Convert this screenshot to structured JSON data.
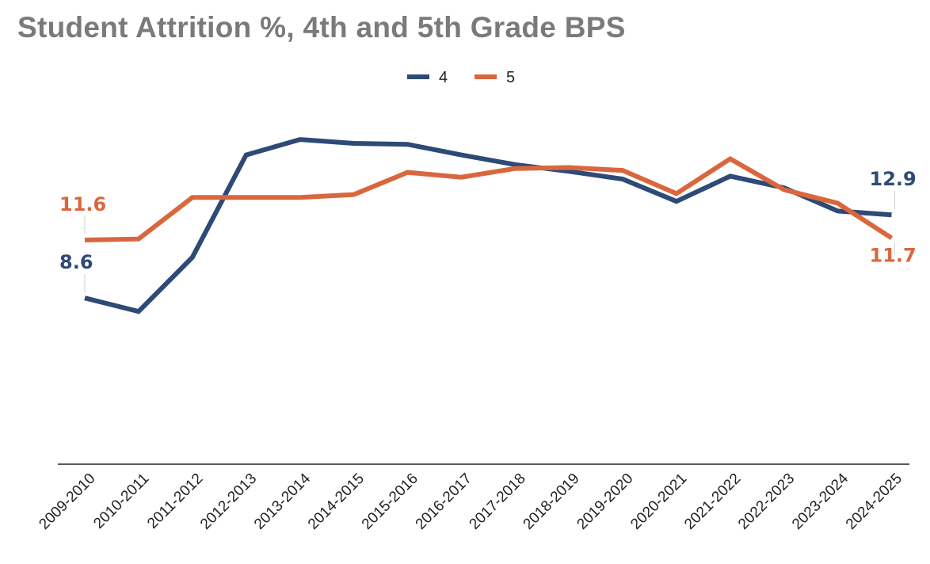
{
  "chart_data": {
    "type": "line",
    "title": "Student Attrition %, 4th and 5th Grade BPS",
    "xlabel": "",
    "ylabel": "",
    "ylim": [
      0,
      17
    ],
    "grid": false,
    "legend_position": "top-center",
    "categories": [
      "2009-2010",
      "2010-2011",
      "2011-2012",
      "2012-2013",
      "2013-2014",
      "2014-2015",
      "2015-2016",
      "2016-2017",
      "2017-2018",
      "2018-2019",
      "2019-2020",
      "2020-2021",
      "2021-2022",
      "2022-2023",
      "2023-2024",
      "2024-2025"
    ],
    "series": [
      {
        "name": "4",
        "color": "#2e4a76",
        "values": [
          8.6,
          7.9,
          10.7,
          16.0,
          16.8,
          16.6,
          16.55,
          16.0,
          15.5,
          15.15,
          14.75,
          13.6,
          14.9,
          14.3,
          13.1,
          12.9
        ],
        "labels": [
          {
            "index": 0,
            "text": "8.6"
          },
          {
            "index": 15,
            "text": "12.9"
          }
        ]
      },
      {
        "name": "5",
        "color": "#d9673d",
        "values": [
          11.6,
          11.65,
          13.8,
          13.8,
          13.8,
          13.95,
          15.1,
          14.85,
          15.3,
          15.35,
          15.2,
          14.0,
          15.8,
          14.2,
          13.5,
          11.7
        ],
        "labels": [
          {
            "index": 0,
            "text": "11.6"
          },
          {
            "index": 15,
            "text": "11.7"
          }
        ]
      }
    ]
  }
}
